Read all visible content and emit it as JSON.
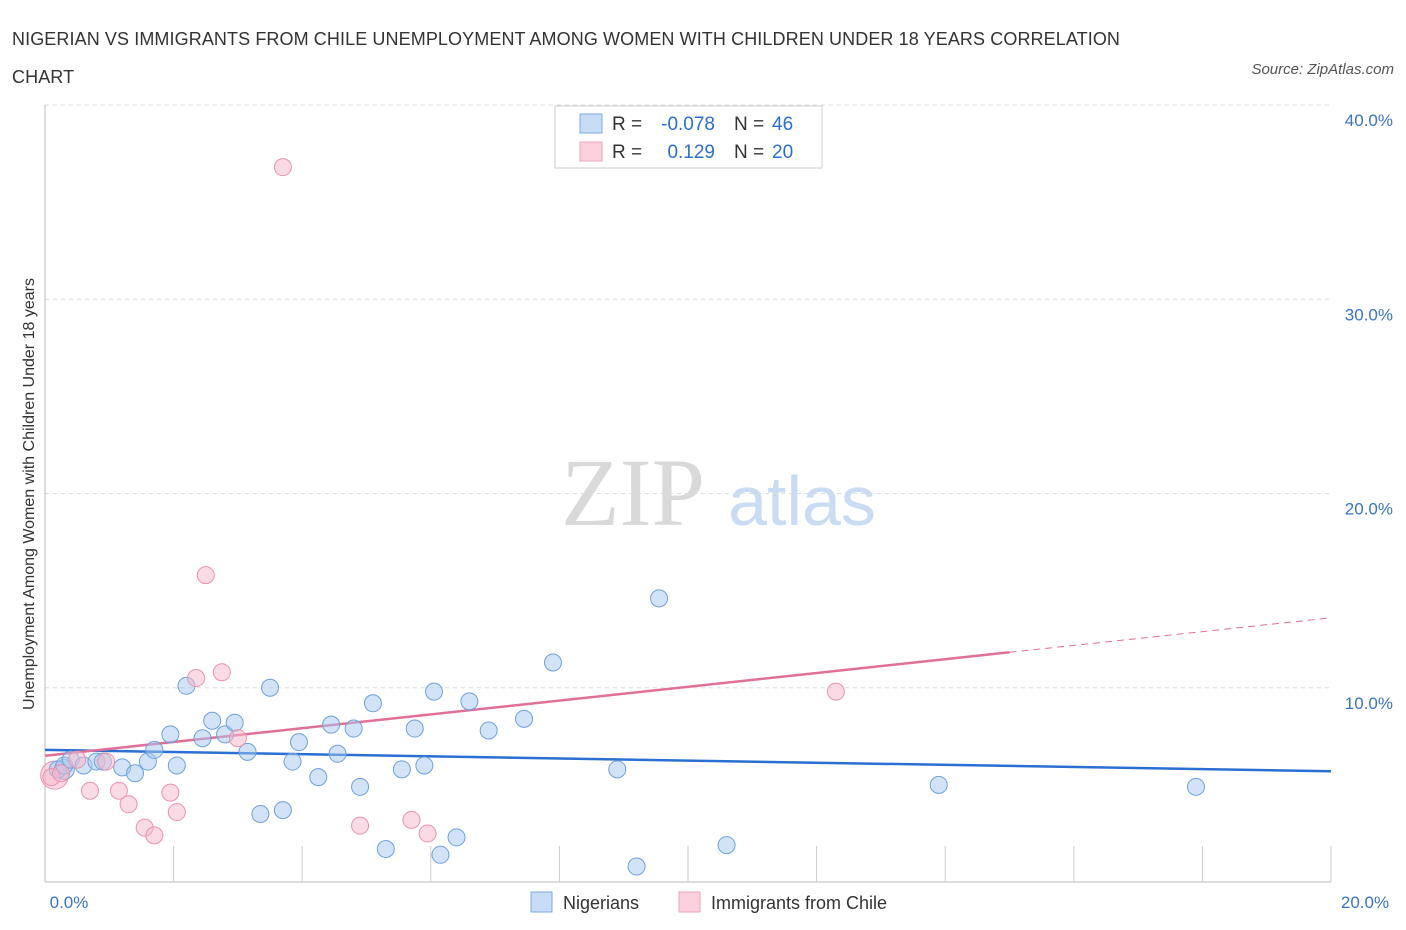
{
  "title": "NIGERIAN VS IMMIGRANTS FROM CHILE UNEMPLOYMENT AMONG WOMEN WITH CHILDREN UNDER 18 YEARS CORRELATION CHART",
  "source": "Source: ZipAtlas.com",
  "watermark": {
    "zip": "ZIP",
    "atlas": "atlas"
  },
  "legend_top": [
    {
      "r_label": "R =",
      "r_value": "-0.078",
      "n_label": "N =",
      "n_value": "46",
      "color": "#a8c8f0"
    },
    {
      "r_label": "R =",
      "r_value": "0.129",
      "n_label": "N =",
      "n_value": "20",
      "color": "#f5b8cb"
    }
  ],
  "chart_data": {
    "type": "scatter",
    "ylabel": "Unemployment Among Women with Children Under 18 years",
    "xlim": [
      0,
      20
    ],
    "ylim": [
      0,
      40
    ],
    "x_tick_labels": [
      "0.0%",
      "20.0%"
    ],
    "y_tick_labels": [
      "10.0%",
      "20.0%",
      "30.0%",
      "40.0%"
    ],
    "y_ticks": [
      10,
      20,
      30,
      40
    ],
    "grid": true,
    "legend_position": "bottom-center",
    "series": [
      {
        "name": "Nigerians",
        "color": "#a8c8f0",
        "stroke": "#6fa0dd",
        "line_color": "#2a6fd1",
        "trend": {
          "x0": 0,
          "y0": 6.8,
          "x1": 20,
          "y1": 5.7,
          "dashed_from": null
        },
        "points": [
          [
            0.2,
            5.8
          ],
          [
            0.3,
            6.0
          ],
          [
            0.4,
            6.3
          ],
          [
            0.6,
            6.0
          ],
          [
            0.8,
            6.2
          ],
          [
            0.9,
            6.2
          ],
          [
            1.2,
            5.9
          ],
          [
            1.4,
            5.6
          ],
          [
            1.6,
            6.2
          ],
          [
            1.7,
            6.8
          ],
          [
            1.95,
            7.6
          ],
          [
            2.05,
            6.0
          ],
          [
            2.2,
            10.1
          ],
          [
            2.45,
            7.4
          ],
          [
            2.6,
            8.3
          ],
          [
            2.8,
            7.6
          ],
          [
            2.95,
            8.2
          ],
          [
            3.15,
            6.7
          ],
          [
            3.35,
            3.5
          ],
          [
            3.5,
            10.0
          ],
          [
            3.7,
            3.7
          ],
          [
            3.85,
            6.2
          ],
          [
            3.95,
            7.2
          ],
          [
            4.25,
            5.4
          ],
          [
            4.45,
            8.1
          ],
          [
            4.55,
            6.6
          ],
          [
            4.8,
            7.9
          ],
          [
            4.9,
            4.9
          ],
          [
            5.1,
            9.2
          ],
          [
            5.3,
            1.7
          ],
          [
            5.55,
            5.8
          ],
          [
            5.75,
            7.9
          ],
          [
            5.9,
            6.0
          ],
          [
            6.05,
            9.8
          ],
          [
            6.15,
            1.4
          ],
          [
            6.4,
            2.3
          ],
          [
            6.6,
            9.3
          ],
          [
            6.9,
            7.8
          ],
          [
            7.45,
            8.4
          ],
          [
            7.9,
            11.3
          ],
          [
            8.9,
            5.8
          ],
          [
            9.55,
            14.6
          ],
          [
            9.2,
            0.8
          ],
          [
            10.6,
            1.9
          ],
          [
            13.9,
            5.0
          ],
          [
            17.9,
            4.9
          ]
        ]
      },
      {
        "name": "Immigrants from Chile",
        "color": "#f5b8cb",
        "stroke": "#e993ad",
        "line_color": "#e07098",
        "trend": {
          "x0": 0,
          "y0": 6.5,
          "x1": 20,
          "y1": 13.6,
          "dashed_from": 15
        },
        "points": [
          [
            0.1,
            5.4
          ],
          [
            0.25,
            5.6
          ],
          [
            0.5,
            6.3
          ],
          [
            0.7,
            4.7
          ],
          [
            0.95,
            6.2
          ],
          [
            1.15,
            4.7
          ],
          [
            1.3,
            4.0
          ],
          [
            1.55,
            2.8
          ],
          [
            1.7,
            2.4
          ],
          [
            1.95,
            4.6
          ],
          [
            2.05,
            3.6
          ],
          [
            2.35,
            10.5
          ],
          [
            2.5,
            15.8
          ],
          [
            2.75,
            10.8
          ],
          [
            3.0,
            7.4
          ],
          [
            3.7,
            36.8
          ],
          [
            4.9,
            2.9
          ],
          [
            5.7,
            3.2
          ],
          [
            5.95,
            2.5
          ],
          [
            12.3,
            9.8
          ]
        ]
      }
    ]
  }
}
